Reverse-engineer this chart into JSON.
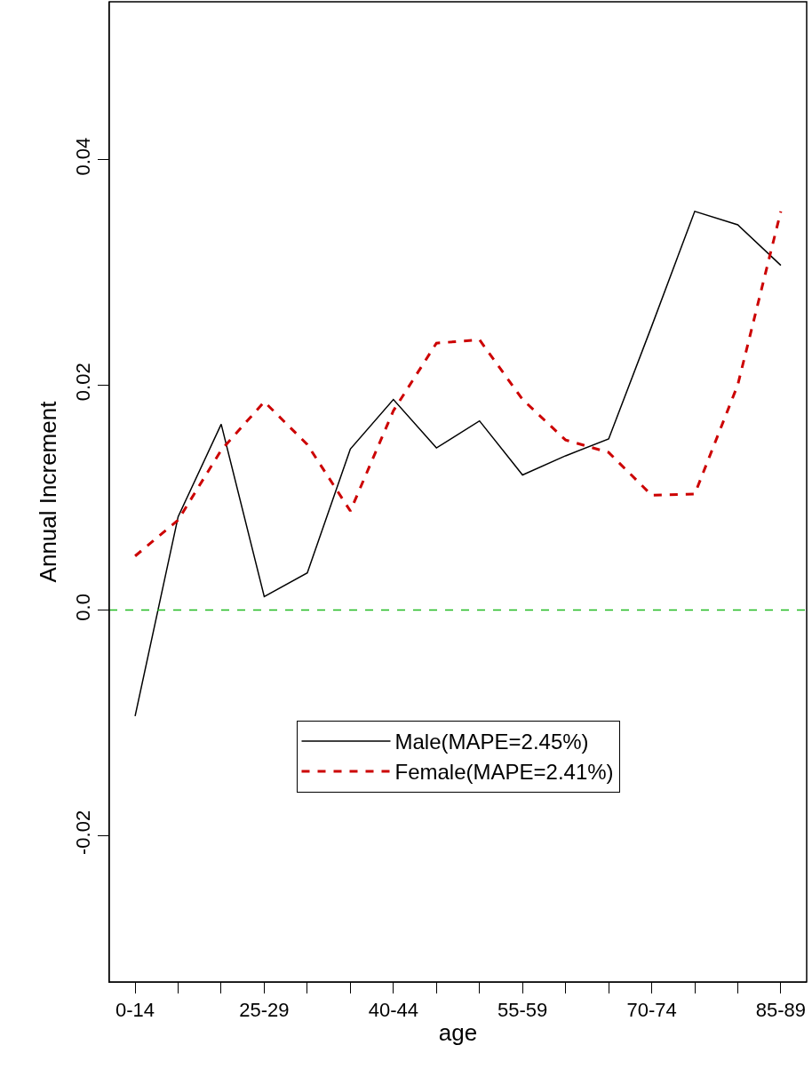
{
  "chart_data": {
    "type": "line",
    "xlabel": "age",
    "ylabel": "Annual Increment",
    "categories": [
      "0-14",
      null,
      null,
      "25-29",
      null,
      null,
      "40-44",
      null,
      null,
      "55-59",
      null,
      null,
      "70-74",
      null,
      null,
      "85-89"
    ],
    "series": [
      {
        "name": "Male(MAPE=2.45%)",
        "color": "#000000",
        "line_style": "solid",
        "values": [
          -0.0094,
          0.0083,
          0.0165,
          0.0012,
          0.0033,
          0.0143,
          0.0187,
          0.0144,
          0.0168,
          0.012,
          0.0137,
          0.0152,
          0.0252,
          0.0354,
          0.0342,
          0.0306
        ]
      },
      {
        "name": "Female(MAPE=2.41%)",
        "color": "#cc0000",
        "line_style": "dashed",
        "values": [
          0.0048,
          0.008,
          0.0142,
          0.0185,
          0.0147,
          0.0088,
          0.0177,
          0.0237,
          0.024,
          0.0187,
          0.0151,
          0.014,
          0.0102,
          0.0103,
          0.02,
          0.0354
        ]
      }
    ],
    "ylim": [
      -0.033,
      0.054
    ],
    "yticks": [
      -0.02,
      {
        "value": 0,
        "label": "0.0"
      },
      0.02,
      0.04
    ],
    "ref_lines": [
      {
        "axis": "y",
        "value": 0,
        "color": "#22bb22",
        "line_style": "dashed"
      }
    ],
    "grid": false,
    "legend": "bottom",
    "marker": "none"
  }
}
